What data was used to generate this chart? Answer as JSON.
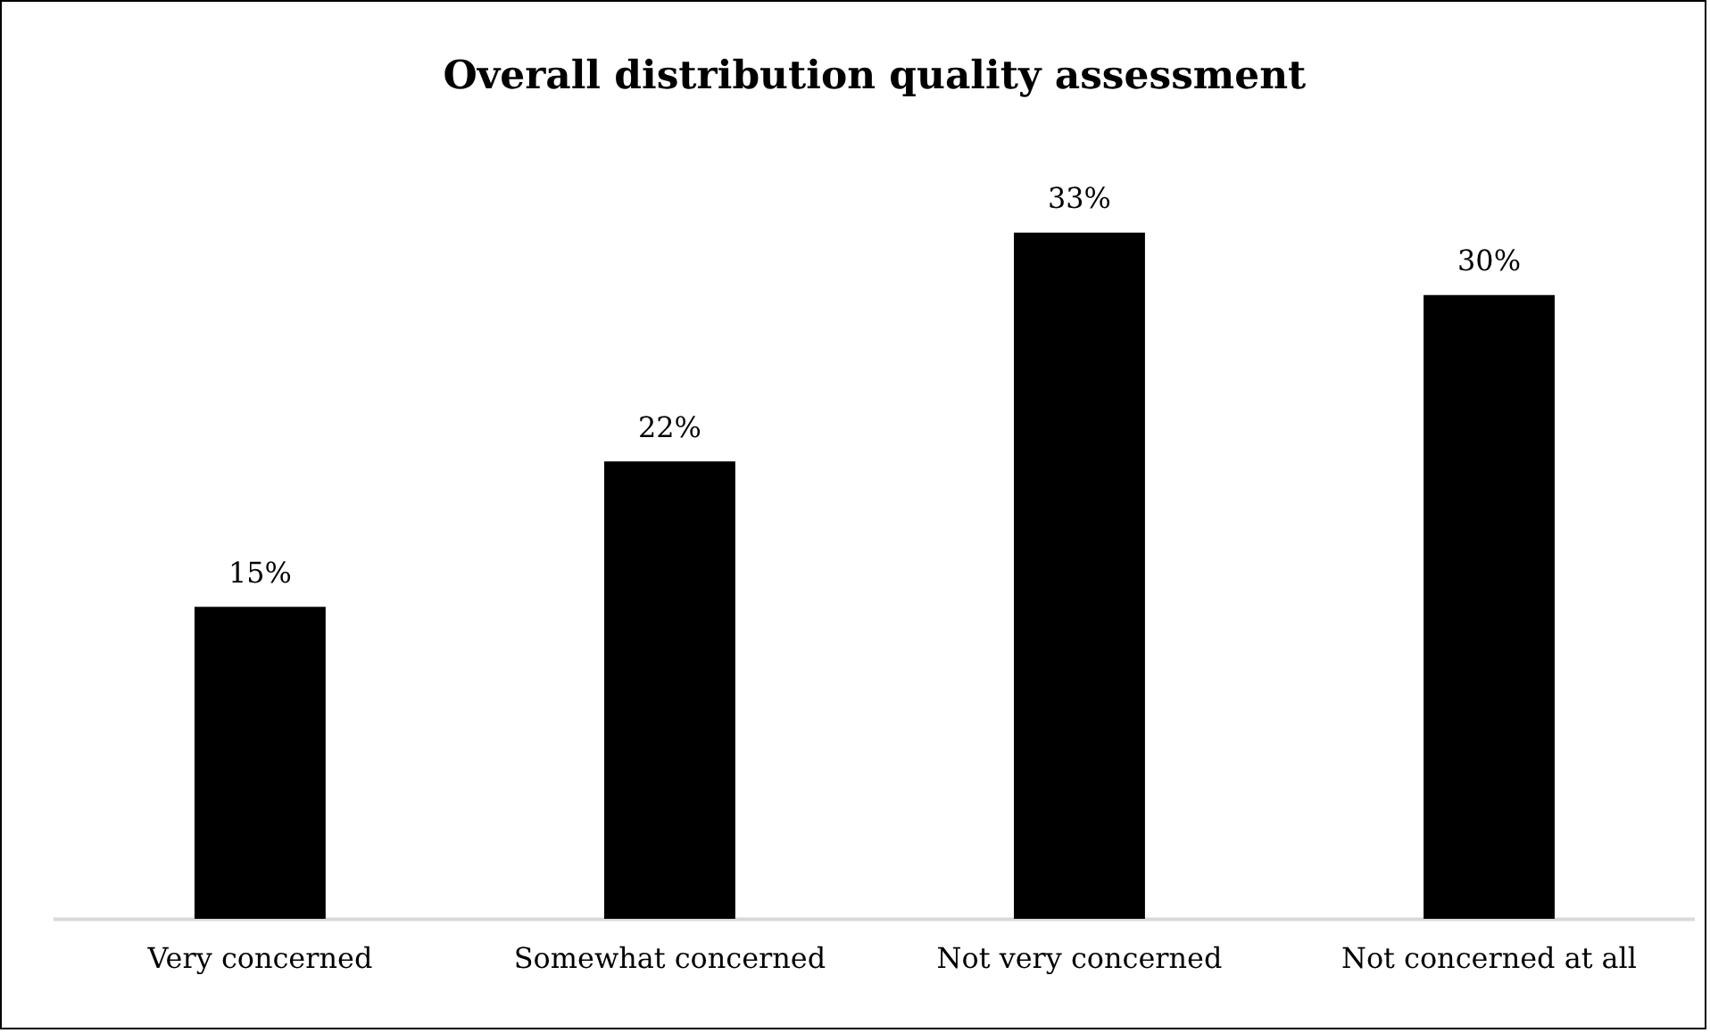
{
  "chart_data": {
    "type": "bar",
    "title": "Overall distribution quality assessment",
    "categories": [
      "Very concerned",
      "Somewhat concerned",
      "Not very concerned",
      "Not concerned at all"
    ],
    "values": [
      15,
      22,
      33,
      30
    ],
    "color": "#000000",
    "value_labels": [
      "15%",
      "22%",
      "33%",
      "30%"
    ],
    "grid": false,
    "legend": false
  }
}
